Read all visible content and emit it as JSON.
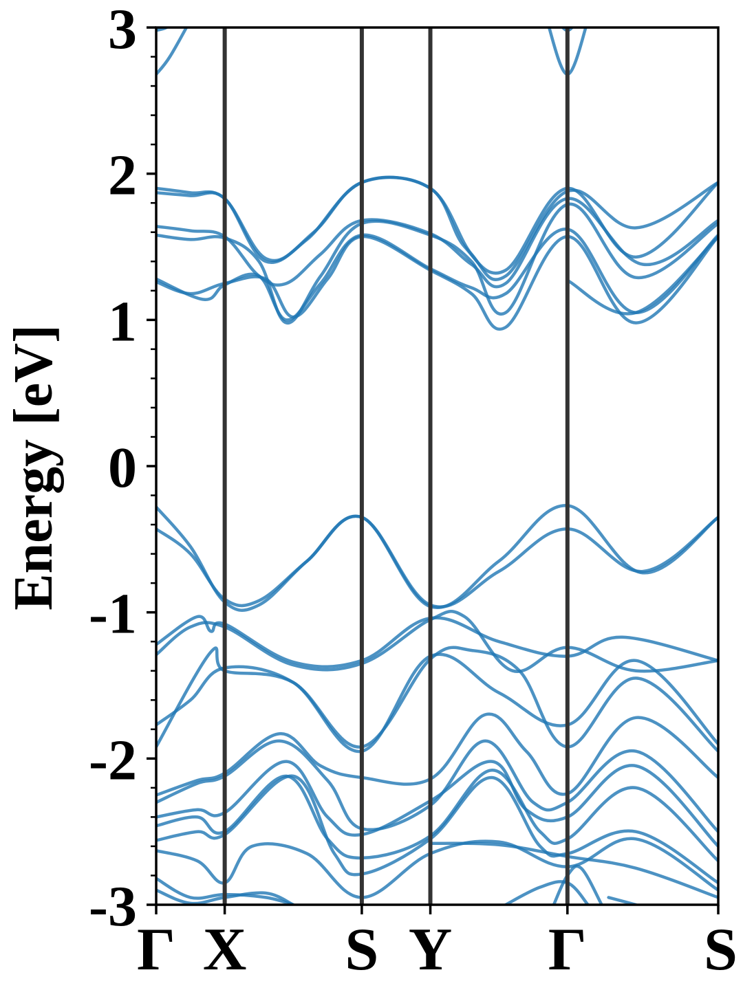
{
  "chart_data": {
    "type": "line",
    "ylabel": "Energy [eV]",
    "xlabel": "",
    "ylim": [
      -3,
      3
    ],
    "x_range": [
      0,
      8.2
    ],
    "yticks": [
      {
        "value": 3,
        "label": "3"
      },
      {
        "value": 2,
        "label": "2"
      },
      {
        "value": 1,
        "label": "1"
      },
      {
        "value": 0,
        "label": "0"
      },
      {
        "value": -1,
        "label": "-1"
      },
      {
        "value": -2,
        "label": "-2"
      },
      {
        "value": -3,
        "label": "-3"
      }
    ],
    "kpoints": [
      {
        "label": "Γ",
        "x": 0.0
      },
      {
        "label": "X",
        "x": 1.0
      },
      {
        "label": "S",
        "x": 3.0
      },
      {
        "label": "Y",
        "x": 4.0
      },
      {
        "label": "Γ",
        "x": 6.0
      },
      {
        "label": "S",
        "x": 8.2
      }
    ],
    "line_color": "#1f77b4",
    "vline_color": "#333333",
    "series": [
      {
        "points": [
          [
            0,
            1.9
          ],
          [
            0.5,
            1.87
          ],
          [
            1,
            1.83
          ],
          [
            1.6,
            1.42
          ],
          [
            2.2,
            1.55
          ],
          [
            3,
            1.94
          ],
          [
            4,
            1.9
          ],
          [
            4.5,
            1.5
          ],
          [
            5.1,
            1.34
          ],
          [
            6,
            1.9
          ],
          [
            7,
            1.43
          ],
          [
            8.2,
            1.94
          ]
        ]
      },
      {
        "points": [
          [
            0,
            1.87
          ],
          [
            0.5,
            1.85
          ],
          [
            1,
            1.83
          ],
          [
            1.6,
            1.4
          ],
          [
            2.3,
            1.6
          ],
          [
            3,
            1.94
          ],
          [
            4,
            1.9
          ],
          [
            4.6,
            1.45
          ],
          [
            5.1,
            1.3
          ],
          [
            6,
            1.88
          ],
          [
            7,
            1.63
          ],
          [
            8.2,
            1.94
          ]
        ]
      },
      {
        "points": [
          [
            0,
            1.64
          ],
          [
            0.5,
            1.61
          ],
          [
            1,
            1.57
          ],
          [
            1.5,
            1.3
          ],
          [
            1.9,
            1.25
          ],
          [
            2.4,
            1.45
          ],
          [
            3,
            1.68
          ],
          [
            4,
            1.59
          ],
          [
            4.6,
            1.38
          ],
          [
            5.1,
            1.25
          ],
          [
            6,
            1.83
          ],
          [
            7.1,
            1.38
          ],
          [
            8.2,
            1.68
          ]
        ]
      },
      {
        "points": [
          [
            0,
            1.58
          ],
          [
            0.5,
            1.55
          ],
          [
            1,
            1.56
          ],
          [
            1.5,
            1.4
          ],
          [
            1.9,
            0.98
          ],
          [
            2.4,
            1.3
          ],
          [
            3,
            1.66
          ],
          [
            4,
            1.58
          ],
          [
            4.6,
            1.4
          ],
          [
            5.1,
            1.05
          ],
          [
            6,
            1.79
          ],
          [
            7.0,
            1.29
          ],
          [
            8.2,
            1.66
          ]
        ]
      },
      {
        "points": [
          [
            0,
            1.28
          ],
          [
            0.7,
            1.14
          ],
          [
            1,
            1.24
          ],
          [
            1.5,
            1.3
          ],
          [
            1.9,
            1.0
          ],
          [
            2.4,
            1.25
          ],
          [
            3,
            1.58
          ],
          [
            4,
            1.35
          ],
          [
            4.6,
            1.22
          ],
          [
            5.1,
            1.18
          ],
          [
            6,
            1.62
          ],
          [
            7.0,
            1.05
          ],
          [
            8.2,
            1.58
          ]
        ]
      },
      {
        "points": [
          [
            0,
            1.26
          ],
          [
            0.5,
            1.18
          ],
          [
            1,
            1.25
          ],
          [
            1.6,
            1.28
          ],
          [
            2.0,
            1.02
          ],
          [
            2.5,
            1.28
          ],
          [
            3,
            1.57
          ],
          [
            4,
            1.34
          ],
          [
            4.6,
            1.18
          ],
          [
            5.1,
            0.95
          ],
          [
            6,
            1.57
          ],
          [
            7.0,
            0.98
          ],
          [
            8.2,
            1.57
          ]
        ]
      },
      {
        "points": [
          [
            6,
            1.27
          ],
          [
            7.0,
            1.05
          ],
          [
            8.2,
            1.57
          ]
        ]
      },
      {
        "points": [
          [
            0,
            -0.28
          ],
          [
            0.5,
            -0.55
          ],
          [
            1,
            -0.93
          ],
          [
            1.5,
            -0.95
          ],
          [
            2.2,
            -0.65
          ],
          [
            3,
            -0.35
          ],
          [
            4,
            -0.96
          ],
          [
            5,
            -0.65
          ],
          [
            6,
            -0.27
          ],
          [
            7.1,
            -0.73
          ],
          [
            8.2,
            -0.35
          ]
        ]
      },
      {
        "points": [
          [
            0,
            -0.43
          ],
          [
            0.5,
            -0.6
          ],
          [
            1,
            -0.91
          ],
          [
            1.5,
            -0.92
          ],
          [
            2.2,
            -0.65
          ],
          [
            3,
            -0.35
          ],
          [
            4,
            -0.95
          ],
          [
            5,
            -0.72
          ],
          [
            6,
            -0.43
          ],
          [
            7.1,
            -0.72
          ],
          [
            8.2,
            -0.35
          ]
        ]
      },
      {
        "points": [
          [
            0,
            -1.22
          ],
          [
            0.6,
            -1.03
          ],
          [
            0.8,
            -1.13
          ],
          [
            1,
            -1.08
          ],
          [
            2,
            -1.34
          ],
          [
            3,
            -1.33
          ],
          [
            4,
            -1.04
          ],
          [
            5,
            -1.2
          ],
          [
            6,
            -1.3
          ],
          [
            6.8,
            -1.17
          ],
          [
            8.2,
            -1.33
          ]
        ]
      },
      {
        "points": [
          [
            0,
            -1.29
          ],
          [
            0.5,
            -1.1
          ],
          [
            1,
            -1.1
          ],
          [
            2,
            -1.36
          ],
          [
            3,
            -1.35
          ],
          [
            4,
            -1.05
          ],
          [
            4.5,
            -1.03
          ],
          [
            5.2,
            -1.4
          ],
          [
            6,
            -1.24
          ],
          [
            7.0,
            -1.4
          ],
          [
            8.2,
            -1.33
          ]
        ]
      },
      {
        "points": [
          [
            0,
            -1.77
          ],
          [
            0.5,
            -1.6
          ],
          [
            1,
            -1.38
          ],
          [
            2,
            -1.48
          ],
          [
            3,
            -1.95
          ],
          [
            4,
            -1.3
          ],
          [
            5,
            -1.55
          ],
          [
            6,
            -1.77
          ],
          [
            7.0,
            -1.33
          ],
          [
            8.2,
            -1.9
          ]
        ]
      },
      {
        "points": [
          [
            0,
            -1.92
          ],
          [
            0.8,
            -1.27
          ],
          [
            1,
            -1.4
          ],
          [
            2,
            -1.48
          ],
          [
            3,
            -1.92
          ],
          [
            4,
            -1.32
          ],
          [
            4.6,
            -1.26
          ],
          [
            5.3,
            -1.4
          ],
          [
            6,
            -1.92
          ],
          [
            7.0,
            -1.45
          ],
          [
            8.2,
            -1.95
          ]
        ]
      },
      {
        "points": [
          [
            0,
            -2.25
          ],
          [
            0.6,
            -2.15
          ],
          [
            1,
            -2.1
          ],
          [
            1.8,
            -1.83
          ],
          [
            2.4,
            -2.05
          ],
          [
            3,
            -2.13
          ],
          [
            4,
            -2.14
          ],
          [
            4.8,
            -1.7
          ],
          [
            5.4,
            -1.95
          ],
          [
            6,
            -2.24
          ],
          [
            7.0,
            -1.72
          ],
          [
            8.2,
            -2.13
          ]
        ]
      },
      {
        "points": [
          [
            0,
            -2.3
          ],
          [
            0.6,
            -2.17
          ],
          [
            1,
            -2.12
          ],
          [
            1.8,
            -1.88
          ],
          [
            2.5,
            -2.15
          ],
          [
            3,
            -2.48
          ],
          [
            4,
            -2.32
          ],
          [
            4.8,
            -1.88
          ],
          [
            5.5,
            -2.3
          ],
          [
            6,
            -2.3
          ],
          [
            7.0,
            -1.95
          ],
          [
            8.2,
            -2.5
          ]
        ]
      },
      {
        "points": [
          [
            0,
            -2.4
          ],
          [
            0.6,
            -2.35
          ],
          [
            1,
            -2.37
          ],
          [
            1.9,
            -2.02
          ],
          [
            2.5,
            -2.4
          ],
          [
            3,
            -2.52
          ],
          [
            4,
            -2.29
          ],
          [
            4.9,
            -2.02
          ],
          [
            5.4,
            -2.35
          ],
          [
            6,
            -2.4
          ],
          [
            7.0,
            -2.05
          ],
          [
            8.2,
            -2.6
          ]
        ]
      },
      {
        "points": [
          [
            0,
            -2.46
          ],
          [
            0.6,
            -2.4
          ],
          [
            1,
            -2.5
          ],
          [
            1.9,
            -2.12
          ],
          [
            2.5,
            -2.55
          ],
          [
            3,
            -2.68
          ],
          [
            4,
            -2.53
          ],
          [
            4.9,
            -2.08
          ],
          [
            5.6,
            -2.5
          ],
          [
            6,
            -2.55
          ],
          [
            7.0,
            -2.2
          ],
          [
            8.2,
            -2.7
          ]
        ]
      },
      {
        "points": [
          [
            0,
            -2.56
          ],
          [
            0.6,
            -2.5
          ],
          [
            1,
            -2.52
          ],
          [
            2,
            -2.12
          ],
          [
            2.6,
            -2.65
          ],
          [
            3,
            -2.79
          ],
          [
            4,
            -2.55
          ],
          [
            4.9,
            -2.13
          ],
          [
            5.6,
            -2.6
          ],
          [
            6,
            -2.65
          ],
          [
            7.0,
            -2.5
          ],
          [
            8.2,
            -2.85
          ]
        ]
      },
      {
        "points": [
          [
            0,
            -2.63
          ],
          [
            0.6,
            -2.7
          ],
          [
            1,
            -2.85
          ],
          [
            1.4,
            -2.6
          ],
          [
            2.2,
            -2.65
          ],
          [
            3,
            -2.95
          ],
          [
            4,
            -2.65
          ],
          [
            5,
            -2.57
          ],
          [
            6,
            -2.74
          ],
          [
            7.0,
            -2.55
          ],
          [
            8.2,
            -2.9
          ]
        ]
      },
      {
        "points": [
          [
            0,
            -2.82
          ],
          [
            0.5,
            -2.95
          ],
          [
            1,
            -2.93
          ],
          [
            1.6,
            -2.95
          ],
          [
            2.0,
            -3.0
          ]
        ]
      },
      {
        "points": [
          [
            0,
            -2.9
          ],
          [
            0.5,
            -2.99
          ],
          [
            1,
            -2.95
          ],
          [
            1.6,
            -2.92
          ],
          [
            2.0,
            -3.0
          ]
        ]
      },
      {
        "points": [
          [
            4,
            -2.58
          ],
          [
            5,
            -2.59
          ],
          [
            6,
            -2.67
          ],
          [
            7.0,
            -2.75
          ],
          [
            8.2,
            -2.95
          ]
        ]
      },
      {
        "points": [
          [
            5.1,
            -3.0
          ],
          [
            5.6,
            -2.88
          ],
          [
            6,
            -2.85
          ],
          [
            6.3,
            -3.0
          ]
        ]
      },
      {
        "points": [
          [
            5.8,
            -3.0
          ],
          [
            6,
            -2.8
          ],
          [
            6.2,
            -2.75
          ],
          [
            6.5,
            -3.0
          ]
        ]
      },
      {
        "points": [
          [
            6.6,
            -2.95
          ],
          [
            7.0,
            -3.0
          ]
        ]
      }
    ],
    "conduction_top": [
      {
        "points": [
          [
            0,
            2.68
          ],
          [
            0.2,
            2.8
          ],
          [
            0.5,
            3.05
          ]
        ]
      },
      {
        "points": [
          [
            0,
            2.98
          ],
          [
            0.15,
            3.0
          ],
          [
            0.3,
            3.05
          ]
        ]
      },
      {
        "points": [
          [
            5.7,
            3.05
          ],
          [
            6,
            2.68
          ],
          [
            6.3,
            3.05
          ]
        ]
      },
      {
        "points": [
          [
            5.85,
            3.05
          ],
          [
            6,
            2.98
          ],
          [
            6.15,
            3.05
          ]
        ]
      }
    ]
  }
}
